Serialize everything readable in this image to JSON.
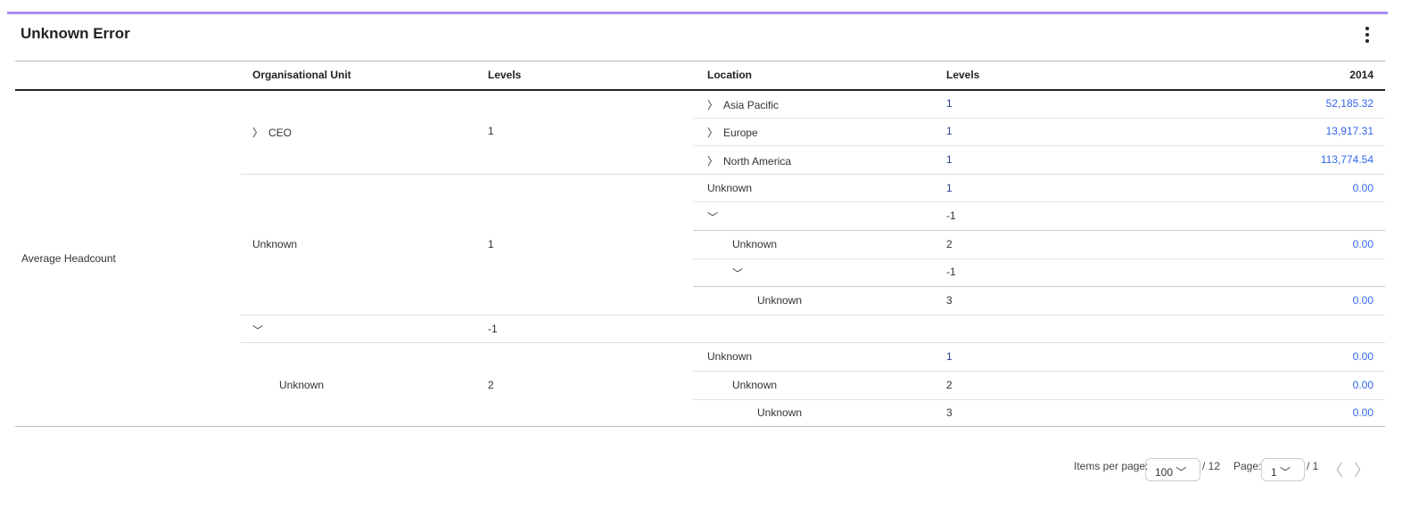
{
  "header": {
    "title": "Unknown Error",
    "menu_icon": "more-vertical-icon",
    "accent": "#a98cf0"
  },
  "table": {
    "columns": [
      "",
      "Organisational Unit",
      "Levels",
      "Location",
      "Levels",
      "2014"
    ],
    "measure": "Average Headcount",
    "org_groups": [
      {
        "label": "CEO",
        "chevron": "right",
        "level": "1",
        "indent": 0,
        "rows": [
          0,
          2
        ]
      },
      {
        "label": "Unknown",
        "chevron": "",
        "level": "1",
        "indent": 0,
        "rows": [
          3,
          7
        ]
      },
      {
        "label": "",
        "chevron": "down",
        "level": "-1",
        "indent": 0,
        "rows": [
          8,
          8
        ]
      },
      {
        "label": "Unknown",
        "chevron": "",
        "level": "2",
        "indent": 1,
        "rows": [
          9,
          11
        ]
      }
    ],
    "rows": [
      {
        "location": "Asia Pacific",
        "chevron": "right",
        "indent": 0,
        "level": "1",
        "value": "52,185.32"
      },
      {
        "location": "Europe",
        "chevron": "right",
        "indent": 0,
        "level": "1",
        "value": "13,917.31"
      },
      {
        "location": "North America",
        "chevron": "right",
        "indent": 0,
        "level": "1",
        "value": "113,774.54"
      },
      {
        "location": "Unknown",
        "chevron": "",
        "indent": 0,
        "level": "1",
        "value": "0.00"
      },
      {
        "location": "",
        "chevron": "down",
        "indent": 0,
        "level": "-1",
        "value": ""
      },
      {
        "location": "Unknown",
        "chevron": "",
        "indent": 1,
        "level": "2",
        "value": "0.00"
      },
      {
        "location": "",
        "chevron": "down",
        "indent": 1,
        "level": "-1",
        "value": ""
      },
      {
        "location": "Unknown",
        "chevron": "",
        "indent": 2,
        "level": "3",
        "value": "0.00"
      },
      null,
      {
        "location": "Unknown",
        "chevron": "",
        "indent": 0,
        "level": "1",
        "value": "0.00"
      },
      {
        "location": "Unknown",
        "chevron": "",
        "indent": 1,
        "level": "2",
        "value": "0.00"
      },
      {
        "location": "Unknown",
        "chevron": "",
        "indent": 2,
        "level": "3",
        "value": "0.00"
      }
    ]
  },
  "pagination": {
    "items_per_page_label": "Items per page:",
    "items_per_page": "100",
    "total_items": "/ 12",
    "page_label": "Page:",
    "page": "1",
    "total_pages": "/ 1"
  }
}
